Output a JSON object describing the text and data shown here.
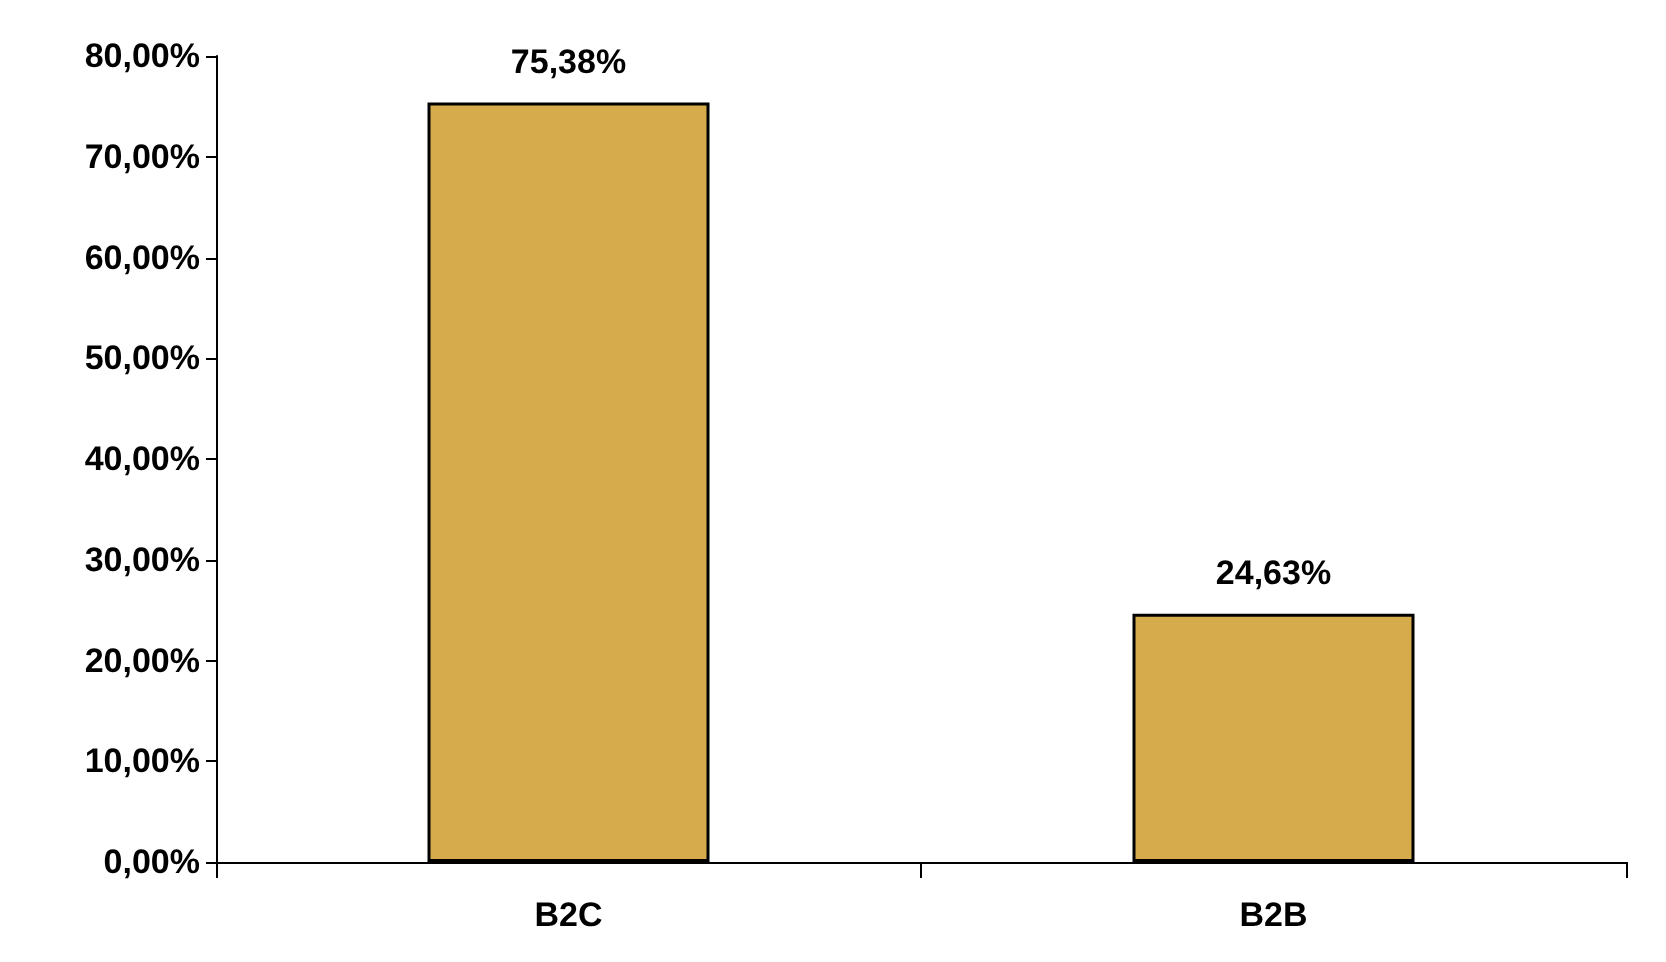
{
  "chart_data": {
    "type": "bar",
    "categories": [
      "B2C",
      "B2B"
    ],
    "values": [
      75.38,
      24.63
    ],
    "color": "#d6ab4c",
    "value_labels": [
      "75,38%",
      "24,63%"
    ],
    "ylim": [
      0,
      80
    ],
    "yticks": [
      {
        "value": 0,
        "label": "0,00%"
      },
      {
        "value": 10,
        "label": "10,00%"
      },
      {
        "value": 20,
        "label": "20,00%"
      },
      {
        "value": 30,
        "label": "30,00%"
      },
      {
        "value": 40,
        "label": "40,00%"
      },
      {
        "value": 50,
        "label": "50,00%"
      },
      {
        "value": 60,
        "label": "60,00%"
      },
      {
        "value": 70,
        "label": "70,00%"
      },
      {
        "value": 80,
        "label": "80,00%"
      }
    ],
    "grid": false
  }
}
